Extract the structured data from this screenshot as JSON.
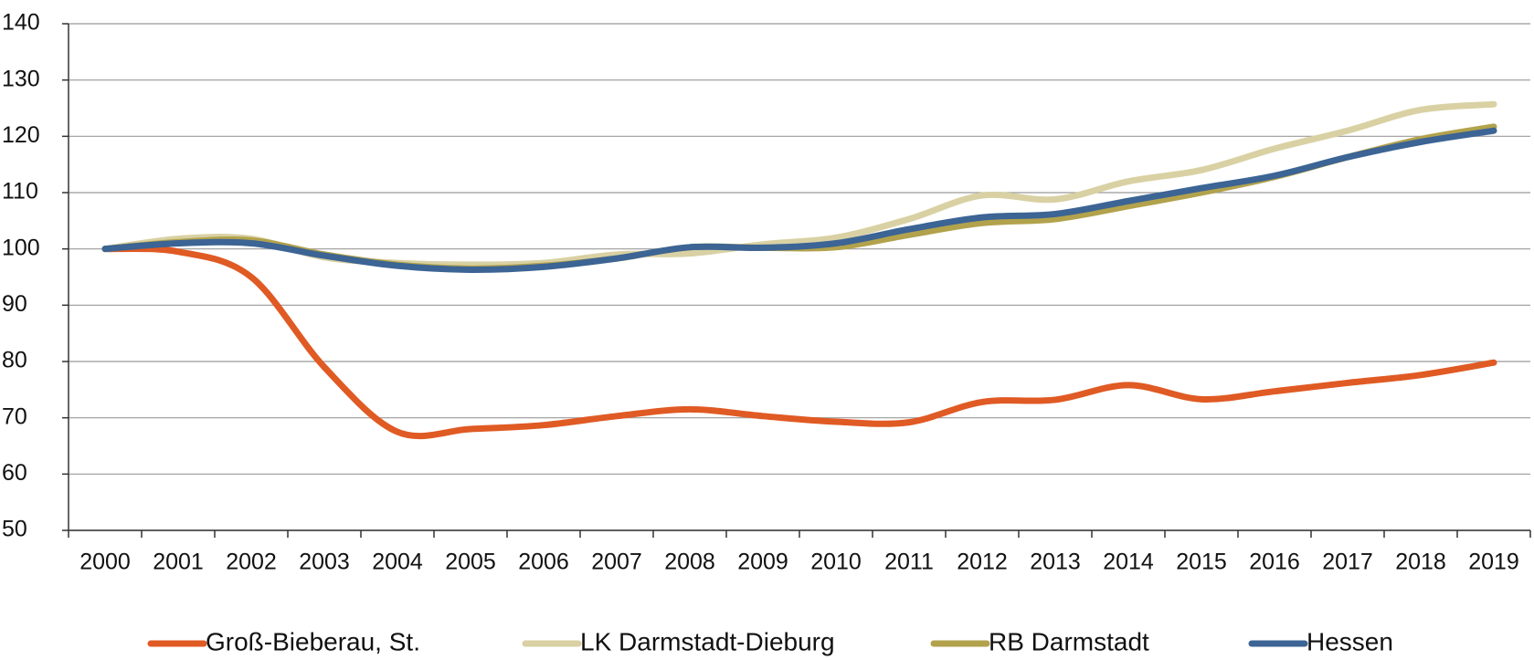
{
  "chart_data": {
    "type": "line",
    "categories": [
      "2000",
      "2001",
      "2002",
      "2003",
      "2004",
      "2005",
      "2006",
      "2007",
      "2008",
      "2009",
      "2010",
      "2011",
      "2012",
      "2013",
      "2014",
      "2015",
      "2016",
      "2017",
      "2018",
      "2019"
    ],
    "series": [
      {
        "name": "Groß-Bieberau, St.",
        "color": "#e05a24",
        "values": [
          100,
          99.5,
          95,
          79,
          67.5,
          68,
          68.7,
          70.3,
          71.5,
          70.3,
          69.3,
          69.2,
          72.8,
          73.2,
          75.8,
          73.3,
          74.7,
          76.2,
          77.6,
          79.8
        ]
      },
      {
        "name": "LK Darmstadt-Dieburg",
        "color": "#d9d1a3",
        "values": [
          100,
          101.8,
          101.8,
          98.5,
          97.5,
          97.2,
          97.5,
          99,
          99.2,
          100.8,
          102,
          105.3,
          109.5,
          108.8,
          112,
          114,
          117.8,
          121,
          124.7,
          125.7
        ]
      },
      {
        "name": "RB Darmstadt",
        "color": "#b2a24c",
        "values": [
          100,
          101.2,
          101.5,
          99,
          97.2,
          96.5,
          97,
          98.3,
          100.3,
          100.2,
          100.3,
          102.5,
          104.6,
          105.3,
          107.6,
          110,
          112.8,
          116.3,
          119.5,
          121.7
        ]
      },
      {
        "name": "Hessen",
        "color": "#3c6494",
        "values": [
          100,
          101,
          101,
          98.8,
          97,
          96.3,
          96.8,
          98.3,
          100.3,
          100.2,
          101,
          103.5,
          105.6,
          106.2,
          108.5,
          110.8,
          113,
          116.3,
          119,
          121
        ]
      }
    ],
    "ylim": [
      50,
      140
    ],
    "yticks": [
      50,
      60,
      70,
      80,
      90,
      100,
      110,
      120,
      130,
      140
    ],
    "grid": true,
    "legend": "bottom"
  }
}
